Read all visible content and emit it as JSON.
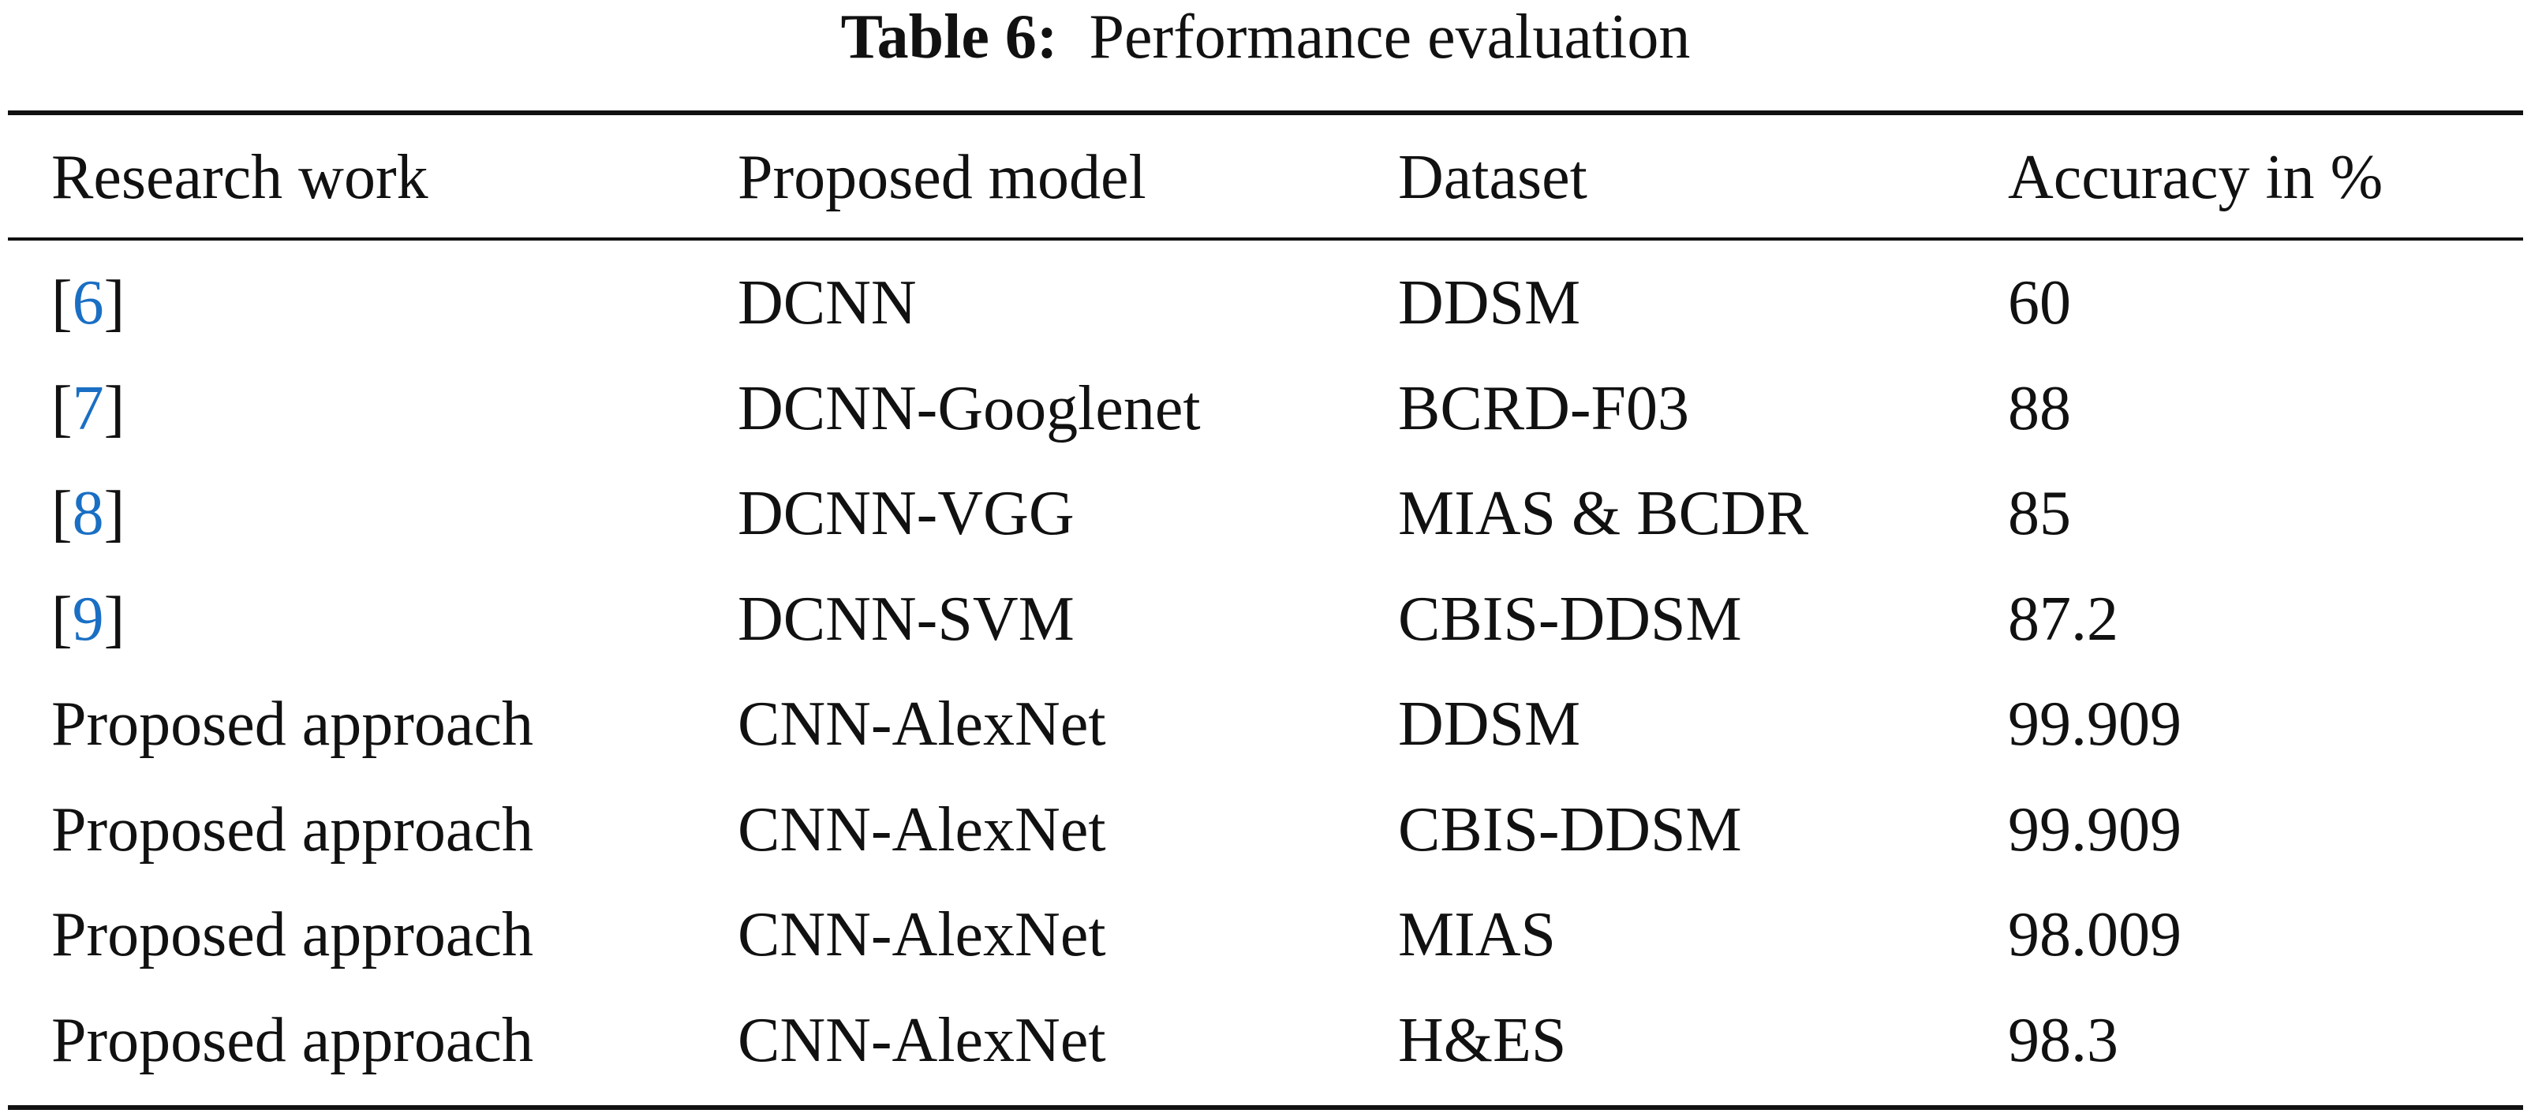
{
  "title": {
    "label": "Table 6:",
    "text": "Performance evaluation"
  },
  "table": {
    "header": [
      "Research work",
      "Proposed model",
      "Dataset",
      "Accuracy in %"
    ],
    "rows": [
      [
        [
          "[",
          "6",
          "]"
        ],
        "DCNN",
        "DDSM",
        "60"
      ],
      [
        [
          "[",
          "7",
          "]"
        ],
        "DCNN-Googlenet",
        "BCRD-F03",
        "88"
      ],
      [
        [
          "[",
          "8",
          "]"
        ],
        "DCNN-VGG",
        "MIAS & BCDR",
        "85"
      ],
      [
        [
          "[",
          "9",
          "]"
        ],
        "DCNN-SVM",
        "CBIS-DDSM",
        "87.2"
      ],
      [
        "Proposed approach",
        "CNN-AlexNet",
        "DDSM",
        "99.909"
      ],
      [
        "Proposed approach",
        "CNN-AlexNet",
        "CBIS-DDSM",
        "99.909"
      ],
      [
        "Proposed approach",
        "CNN-AlexNet",
        "MIAS",
        "98.009"
      ],
      [
        "Proposed approach",
        "CNN-AlexNet",
        "H&ES",
        "98.3"
      ]
    ]
  }
}
